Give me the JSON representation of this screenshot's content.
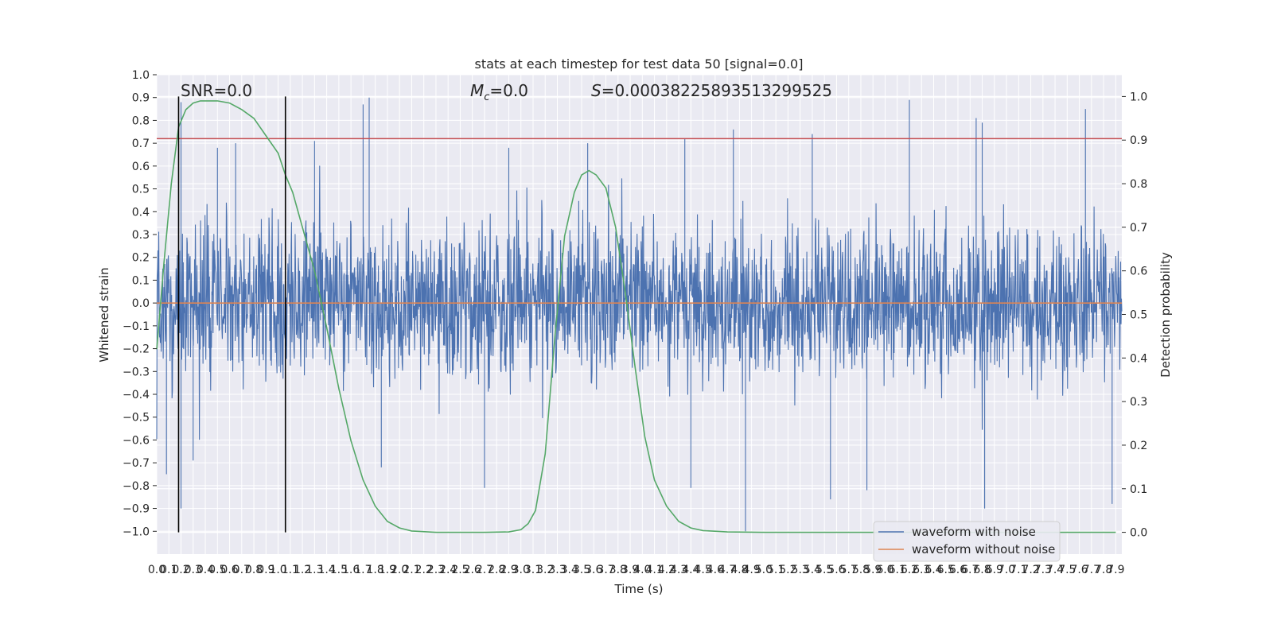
{
  "chart_data": {
    "type": "line",
    "title": "stats at each timestep for test data 50 [signal=0.0]",
    "xlabel": "Time (s)",
    "ylabel": "Whitened strain",
    "ylabel_right": "Detection probability",
    "xlim": [
      0,
      7.95
    ],
    "ylim": [
      -1.1,
      1.0
    ],
    "ylim_right": [
      -0.05,
      1.05
    ],
    "x_ticks": [
      "0.0",
      "0.1",
      "0.2",
      "0.3",
      "0.4",
      "0.5",
      "0.6",
      "0.7",
      "0.8",
      "0.9",
      "1.0",
      "1.1",
      "1.2",
      "1.3",
      "1.4",
      "1.5",
      "1.6",
      "1.7",
      "1.8",
      "1.9",
      "2.0",
      "2.1",
      "2.2",
      "2.3",
      "2.4",
      "2.5",
      "2.6",
      "2.7",
      "2.8",
      "2.9",
      "3.0",
      "3.1",
      "3.2",
      "3.3",
      "3.4",
      "3.5",
      "3.6",
      "3.7",
      "3.8",
      "3.9",
      "4.0",
      "4.1",
      "4.2",
      "4.3",
      "4.4",
      "4.5",
      "4.6",
      "4.7",
      "4.8",
      "4.9",
      "5.0",
      "5.1",
      "5.2",
      "5.3",
      "5.4",
      "5.5",
      "5.6",
      "5.7",
      "5.8",
      "5.9",
      "6.0",
      "6.1",
      "6.2",
      "6.3",
      "6.4",
      "6.5",
      "6.6",
      "6.7",
      "6.8",
      "6.9",
      "7.0",
      "7.1",
      "7.2",
      "7.3",
      "7.4",
      "7.5",
      "7.6",
      "7.7",
      "7.8",
      "7.9"
    ],
    "y_ticks_left": [
      "1.0",
      "0.9",
      "0.8",
      "0.7",
      "0.6",
      "0.5",
      "0.4",
      "0.3",
      "0.2",
      "0.1",
      "0.0",
      "−0.1",
      "−0.2",
      "−0.3",
      "−0.4",
      "−0.5",
      "−0.6",
      "−0.7",
      "−0.8",
      "−0.9",
      "−1.0"
    ],
    "y_ticks_right": [
      "1.0",
      "0.9",
      "0.8",
      "0.7",
      "0.6",
      "0.5",
      "0.4",
      "0.3",
      "0.2",
      "0.1",
      "0.0"
    ],
    "annotations": {
      "snr": "SNR=0.0",
      "mc_symbol": "M",
      "mc_sub": "c",
      "mc_value": "=0.0",
      "s_symbol": "S",
      "s_value": "=0.00038225893513299525"
    },
    "series": [
      {
        "name": "waveform with noise",
        "color": "#4c72b0",
        "note_envelope": "dense noise roughly within ±0.3 with spikes",
        "spikes": [
          {
            "x": 0.2,
            "y": 0.88
          },
          {
            "x": 0.2,
            "y": -0.9
          },
          {
            "x": 0.08,
            "y": -0.75
          },
          {
            "x": 0.3,
            "y": -0.69
          },
          {
            "x": 0.5,
            "y": 0.68
          },
          {
            "x": 0.65,
            "y": 0.7
          },
          {
            "x": 1.7,
            "y": 0.87
          },
          {
            "x": 1.75,
            "y": 0.9
          },
          {
            "x": 1.3,
            "y": 0.71
          },
          {
            "x": 1.85,
            "y": -0.72
          },
          {
            "x": 2.7,
            "y": -0.81
          },
          {
            "x": 2.9,
            "y": 0.68
          },
          {
            "x": 3.55,
            "y": 0.7
          },
          {
            "x": 4.35,
            "y": 0.72
          },
          {
            "x": 4.4,
            "y": -0.81
          },
          {
            "x": 4.75,
            "y": 0.76
          },
          {
            "x": 4.85,
            "y": -1.0
          },
          {
            "x": 5.4,
            "y": 0.74
          },
          {
            "x": 5.55,
            "y": -0.86
          },
          {
            "x": 5.85,
            "y": -0.82
          },
          {
            "x": 6.2,
            "y": 0.89
          },
          {
            "x": 6.75,
            "y": 0.81
          },
          {
            "x": 6.8,
            "y": 0.79
          },
          {
            "x": 6.82,
            "y": -0.9
          },
          {
            "x": 7.65,
            "y": 0.85
          },
          {
            "x": 7.87,
            "y": -0.88
          }
        ]
      },
      {
        "name": "waveform without noise",
        "color": "#dd8452",
        "x": [
          0,
          7.95
        ],
        "y": [
          0,
          0
        ]
      },
      {
        "name": "",
        "axis": "right",
        "color": "#55a868",
        "x": [
          0.0,
          0.06,
          0.12,
          0.18,
          0.24,
          0.3,
          0.36,
          0.42,
          0.5,
          0.6,
          0.7,
          0.8,
          0.9,
          1.0,
          1.06,
          1.12,
          1.2,
          1.3,
          1.4,
          1.5,
          1.6,
          1.7,
          1.8,
          1.9,
          2.0,
          2.1,
          2.3,
          2.5,
          2.7,
          2.9,
          3.0,
          3.06,
          3.12,
          3.2,
          3.28,
          3.36,
          3.44,
          3.5,
          3.56,
          3.62,
          3.7,
          3.78,
          3.86,
          3.94,
          4.02,
          4.1,
          4.2,
          4.3,
          4.4,
          4.5,
          4.7,
          5.0,
          6.0,
          7.0,
          7.9
        ],
        "y": [
          0.42,
          0.62,
          0.8,
          0.93,
          0.97,
          0.985,
          0.99,
          0.99,
          0.99,
          0.985,
          0.97,
          0.95,
          0.91,
          0.87,
          0.82,
          0.78,
          0.7,
          0.6,
          0.47,
          0.33,
          0.21,
          0.12,
          0.06,
          0.025,
          0.01,
          0.003,
          0.0,
          0.0,
          0.0,
          0.001,
          0.006,
          0.02,
          0.05,
          0.18,
          0.45,
          0.68,
          0.78,
          0.82,
          0.83,
          0.82,
          0.79,
          0.7,
          0.55,
          0.38,
          0.22,
          0.12,
          0.06,
          0.025,
          0.01,
          0.004,
          0.001,
          0.0,
          0.0,
          0.0,
          0.0
        ]
      }
    ],
    "horizontal_lines": [
      {
        "axis": "left",
        "y": 0.72,
        "color": "#c44e52"
      }
    ],
    "vertical_lines": [
      {
        "x": 0.18,
        "color": "#000000"
      },
      {
        "x": 1.06,
        "color": "#000000"
      }
    ],
    "legend": {
      "placement": "lower right",
      "entries": [
        "waveform with noise",
        "waveform without noise"
      ]
    },
    "grid": true,
    "background": "#eaeaf2"
  }
}
